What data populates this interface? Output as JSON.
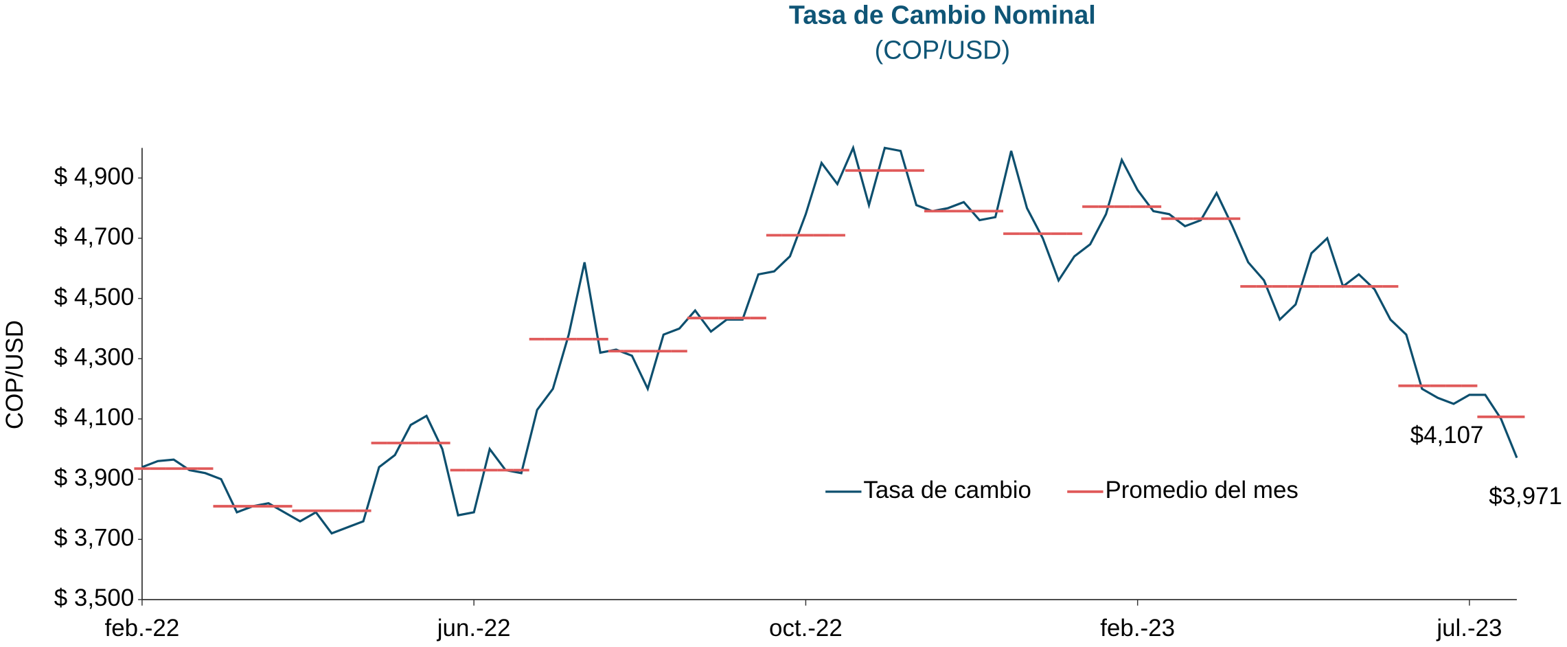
{
  "chart_data": {
    "type": "line",
    "title": "Tasa de Cambio Nominal",
    "subtitle": "(COP/USD)",
    "y_label": "COP/USD",
    "categories": [
      "feb.-22",
      null,
      null,
      null,
      null,
      null,
      null,
      null,
      null,
      null,
      null,
      null,
      null,
      null,
      null,
      null,
      null,
      null,
      null,
      null,
      null,
      "jun.-22",
      null,
      null,
      null,
      null,
      null,
      null,
      null,
      null,
      null,
      null,
      null,
      null,
      null,
      null,
      null,
      null,
      null,
      null,
      null,
      null,
      "oct.-22",
      null,
      null,
      null,
      null,
      null,
      null,
      null,
      null,
      null,
      null,
      null,
      null,
      null,
      null,
      null,
      null,
      null,
      null,
      null,
      null,
      "feb.-23",
      null,
      null,
      null,
      null,
      null,
      null,
      null,
      null,
      null,
      null,
      null,
      null,
      null,
      null,
      null,
      null,
      null,
      null,
      null,
      null,
      "jul.-23",
      null,
      null,
      null
    ],
    "series": [
      {
        "name": "Tasa de cambio",
        "color": "#0d4f6e",
        "style": "line",
        "values": [
          3940,
          3960,
          3965,
          3930,
          3920,
          3900,
          3790,
          3810,
          3820,
          3790,
          3760,
          3790,
          3720,
          3740,
          3760,
          3940,
          3980,
          4080,
          4110,
          4000,
          3780,
          3790,
          4000,
          3930,
          3920,
          4130,
          4200,
          4380,
          4620,
          4320,
          4330,
          4310,
          4200,
          4380,
          4400,
          4460,
          4390,
          4430,
          4430,
          4580,
          4590,
          4640,
          4780,
          4950,
          4880,
          5000,
          4810,
          5000,
          4990,
          4810,
          4790,
          4800,
          4820,
          4760,
          4770,
          4990,
          4800,
          4700,
          4560,
          4640,
          4680,
          4780,
          4960,
          4860,
          4790,
          4780,
          4740,
          4760,
          4850,
          4740,
          4620,
          4560,
          4430,
          4480,
          4650,
          4700,
          4540,
          4580,
          4530,
          4430,
          4380,
          4200,
          4170,
          4150,
          4180,
          4180,
          4100,
          3971
        ],
        "value_labels": [
          null,
          null,
          null,
          null,
          null,
          null,
          null,
          null,
          null,
          null,
          null,
          null,
          null,
          null,
          null,
          null,
          null,
          null,
          null,
          null,
          null,
          null,
          null,
          null,
          null,
          null,
          null,
          null,
          null,
          null,
          null,
          null,
          null,
          null,
          null,
          null,
          null,
          null,
          null,
          null,
          null,
          null,
          null,
          null,
          null,
          null,
          null,
          null,
          null,
          null,
          null,
          null,
          null,
          null,
          null,
          null,
          null,
          null,
          null,
          null,
          null,
          null,
          null,
          null,
          null,
          null,
          null,
          null,
          null,
          null,
          null,
          null,
          null,
          null,
          null,
          null,
          null,
          null,
          null,
          null,
          null,
          null,
          null,
          null,
          null,
          null,
          null,
          "$3,971"
        ]
      },
      {
        "name": "Promedio del mes",
        "color": "#e05a5a",
        "style": "step",
        "values": [
          3935,
          3935,
          3935,
          3935,
          3935,
          3810,
          3810,
          3810,
          3810,
          3810,
          3795,
          3795,
          3795,
          3795,
          3795,
          4020,
          4020,
          4020,
          4020,
          4020,
          3930,
          3930,
          3930,
          3930,
          3930,
          4365,
          4365,
          4365,
          4365,
          4365,
          4325,
          4325,
          4325,
          4325,
          4325,
          4435,
          4435,
          4435,
          4435,
          4435,
          4710,
          4710,
          4710,
          4710,
          4710,
          4925,
          4925,
          4925,
          4925,
          4925,
          4790,
          4790,
          4790,
          4790,
          4790,
          4715,
          4715,
          4715,
          4715,
          4715,
          4805,
          4805,
          4805,
          4805,
          4805,
          4765,
          4765,
          4765,
          4765,
          4765,
          4540,
          4540,
          4540,
          4540,
          4540,
          4540,
          4540,
          4540,
          4540,
          4540,
          4210,
          4210,
          4210,
          4210,
          4210,
          4107,
          4107,
          4107
        ],
        "value_labels": [
          null,
          null,
          null,
          null,
          null,
          null,
          null,
          null,
          null,
          null,
          null,
          null,
          null,
          null,
          null,
          null,
          null,
          null,
          null,
          null,
          null,
          null,
          null,
          null,
          null,
          null,
          null,
          null,
          null,
          null,
          null,
          null,
          null,
          null,
          null,
          null,
          null,
          null,
          null,
          null,
          null,
          null,
          null,
          null,
          null,
          null,
          null,
          null,
          null,
          null,
          null,
          null,
          null,
          null,
          null,
          null,
          null,
          null,
          null,
          null,
          null,
          null,
          null,
          null,
          null,
          null,
          null,
          null,
          null,
          null,
          null,
          null,
          null,
          null,
          null,
          null,
          null,
          null,
          null,
          null,
          null,
          null,
          null,
          null,
          null,
          null,
          null,
          "$4,107"
        ]
      }
    ],
    "ylim": [
      3500,
      5000
    ],
    "yticks": [
      {
        "value": 3500,
        "label": "$ 3,500"
      },
      {
        "value": 3700,
        "label": "$ 3,700"
      },
      {
        "value": 3900,
        "label": "$ 3,900"
      },
      {
        "value": 4100,
        "label": "$ 4,100"
      },
      {
        "value": 4300,
        "label": "$ 4,300"
      },
      {
        "value": 4500,
        "label": "$ 4,500"
      },
      {
        "value": 4700,
        "label": "$ 4,700"
      },
      {
        "value": 4900,
        "label": "$ 4,900"
      }
    ]
  }
}
